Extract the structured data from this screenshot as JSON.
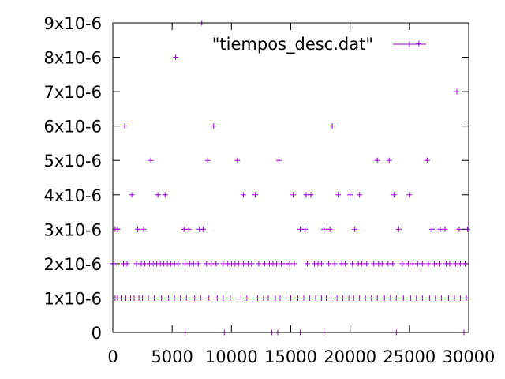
{
  "chart_data": {
    "type": "scatter",
    "title": "",
    "xlabel": "",
    "ylabel": "",
    "xlim": [
      0,
      30000
    ],
    "ylim": [
      0,
      9e-06
    ],
    "legend": "top-center",
    "grid": false,
    "marker": "plus",
    "colors": {
      "series": "#9400d3",
      "axis": "#000000",
      "background": "#ffffff"
    },
    "x_ticks": [
      {
        "value": 0,
        "label": "0"
      },
      {
        "value": 5000,
        "label": "5000"
      },
      {
        "value": 10000,
        "label": "10000"
      },
      {
        "value": 15000,
        "label": "15000"
      },
      {
        "value": 20000,
        "label": "20000"
      },
      {
        "value": 25000,
        "label": "25000"
      },
      {
        "value": 30000,
        "label": "30000"
      }
    ],
    "y_ticks": [
      {
        "value": 0,
        "label": "0"
      },
      {
        "value": 1e-06,
        "label": "1x10-6"
      },
      {
        "value": 2e-06,
        "label": "2x10-6"
      },
      {
        "value": 3e-06,
        "label": "3x10-6"
      },
      {
        "value": 4e-06,
        "label": "4x10-6"
      },
      {
        "value": 5e-06,
        "label": "5x10-6"
      },
      {
        "value": 6e-06,
        "label": "6x10-6"
      },
      {
        "value": 7e-06,
        "label": "7x10-6"
      },
      {
        "value": 8e-06,
        "label": "8x10-6"
      },
      {
        "value": 9e-06,
        "label": "9x10-6"
      }
    ],
    "series": [
      {
        "name": "\"tiempos_desc.dat\"",
        "points": [
          [
            7500,
            9e-06
          ],
          [
            5300,
            8e-06
          ],
          [
            25800,
            8.4e-06
          ],
          [
            29000,
            7e-06
          ],
          [
            1000,
            6e-06
          ],
          [
            8500,
            6e-06
          ],
          [
            18500,
            6e-06
          ],
          [
            3200,
            5e-06
          ],
          [
            8000,
            5e-06
          ],
          [
            10500,
            5e-06
          ],
          [
            14000,
            5e-06
          ],
          [
            22300,
            5e-06
          ],
          [
            23300,
            5e-06
          ],
          [
            26500,
            5e-06
          ],
          [
            1600,
            4e-06
          ],
          [
            3800,
            4e-06
          ],
          [
            4400,
            4e-06
          ],
          [
            11000,
            4e-06
          ],
          [
            12000,
            4e-06
          ],
          [
            15200,
            4e-06
          ],
          [
            16300,
            4e-06
          ],
          [
            16700,
            4e-06
          ],
          [
            19000,
            4e-06
          ],
          [
            20000,
            4e-06
          ],
          [
            20800,
            4e-06
          ],
          [
            23700,
            4e-06
          ],
          [
            25000,
            4e-06
          ],
          [
            200,
            3e-06
          ],
          [
            400,
            3e-06
          ],
          [
            2100,
            3e-06
          ],
          [
            2600,
            3e-06
          ],
          [
            6000,
            3e-06
          ],
          [
            6400,
            3e-06
          ],
          [
            7300,
            3e-06
          ],
          [
            7600,
            3e-06
          ],
          [
            15800,
            3e-06
          ],
          [
            16200,
            3e-06
          ],
          [
            17800,
            3e-06
          ],
          [
            18300,
            3e-06
          ],
          [
            20400,
            3e-06
          ],
          [
            24100,
            3e-06
          ],
          [
            26900,
            3e-06
          ],
          [
            27600,
            3e-06
          ],
          [
            28000,
            3e-06
          ],
          [
            29200,
            3e-06
          ],
          [
            29900,
            3e-06
          ],
          [
            0,
            2e-06
          ],
          [
            100,
            2e-06
          ],
          [
            900,
            2e-06
          ],
          [
            1200,
            2e-06
          ],
          [
            2000,
            2e-06
          ],
          [
            2400,
            2e-06
          ],
          [
            2700,
            2e-06
          ],
          [
            3100,
            2e-06
          ],
          [
            3400,
            2e-06
          ],
          [
            3700,
            2e-06
          ],
          [
            4000,
            2e-06
          ],
          [
            4300,
            2e-06
          ],
          [
            4600,
            2e-06
          ],
          [
            4900,
            2e-06
          ],
          [
            5200,
            2e-06
          ],
          [
            5500,
            2e-06
          ],
          [
            6100,
            2e-06
          ],
          [
            6500,
            2e-06
          ],
          [
            6800,
            2e-06
          ],
          [
            7200,
            2e-06
          ],
          [
            7900,
            2e-06
          ],
          [
            8300,
            2e-06
          ],
          [
            8700,
            2e-06
          ],
          [
            9300,
            2e-06
          ],
          [
            9700,
            2e-06
          ],
          [
            10000,
            2e-06
          ],
          [
            10300,
            2e-06
          ],
          [
            10600,
            2e-06
          ],
          [
            11000,
            2e-06
          ],
          [
            11400,
            2e-06
          ],
          [
            11700,
            2e-06
          ],
          [
            12300,
            2e-06
          ],
          [
            12800,
            2e-06
          ],
          [
            13200,
            2e-06
          ],
          [
            13500,
            2e-06
          ],
          [
            13800,
            2e-06
          ],
          [
            14200,
            2e-06
          ],
          [
            14600,
            2e-06
          ],
          [
            14900,
            2e-06
          ],
          [
            15300,
            2e-06
          ],
          [
            16400,
            2e-06
          ],
          [
            17000,
            2e-06
          ],
          [
            17300,
            2e-06
          ],
          [
            17600,
            2e-06
          ],
          [
            18200,
            2e-06
          ],
          [
            18700,
            2e-06
          ],
          [
            19300,
            2e-06
          ],
          [
            19600,
            2e-06
          ],
          [
            20200,
            2e-06
          ],
          [
            20700,
            2e-06
          ],
          [
            21000,
            2e-06
          ],
          [
            21400,
            2e-06
          ],
          [
            22000,
            2e-06
          ],
          [
            22400,
            2e-06
          ],
          [
            22700,
            2e-06
          ],
          [
            23200,
            2e-06
          ],
          [
            23600,
            2e-06
          ],
          [
            24400,
            2e-06
          ],
          [
            24900,
            2e-06
          ],
          [
            25300,
            2e-06
          ],
          [
            25700,
            2e-06
          ],
          [
            26100,
            2e-06
          ],
          [
            26600,
            2e-06
          ],
          [
            27100,
            2e-06
          ],
          [
            27500,
            2e-06
          ],
          [
            28100,
            2e-06
          ],
          [
            28400,
            2e-06
          ],
          [
            28900,
            2e-06
          ],
          [
            29300,
            2e-06
          ],
          [
            29700,
            2e-06
          ],
          [
            200,
            1e-06
          ],
          [
            400,
            1e-06
          ],
          [
            700,
            1e-06
          ],
          [
            1100,
            1e-06
          ],
          [
            1500,
            1e-06
          ],
          [
            1800,
            1e-06
          ],
          [
            2200,
            1e-06
          ],
          [
            2500,
            1e-06
          ],
          [
            3000,
            1e-06
          ],
          [
            3500,
            1e-06
          ],
          [
            4100,
            1e-06
          ],
          [
            4700,
            1e-06
          ],
          [
            5200,
            1e-06
          ],
          [
            5700,
            1e-06
          ],
          [
            6200,
            1e-06
          ],
          [
            6900,
            1e-06
          ],
          [
            7400,
            1e-06
          ],
          [
            8100,
            1e-06
          ],
          [
            8800,
            1e-06
          ],
          [
            9300,
            1e-06
          ],
          [
            9900,
            1e-06
          ],
          [
            10800,
            1e-06
          ],
          [
            11300,
            1e-06
          ],
          [
            12200,
            1e-06
          ],
          [
            12700,
            1e-06
          ],
          [
            13100,
            1e-06
          ],
          [
            13700,
            1e-06
          ],
          [
            14100,
            1e-06
          ],
          [
            14600,
            1e-06
          ],
          [
            15000,
            1e-06
          ],
          [
            15600,
            1e-06
          ],
          [
            16100,
            1e-06
          ],
          [
            16600,
            1e-06
          ],
          [
            17100,
            1e-06
          ],
          [
            17600,
            1e-06
          ],
          [
            18000,
            1e-06
          ],
          [
            18400,
            1e-06
          ],
          [
            18900,
            1e-06
          ],
          [
            19400,
            1e-06
          ],
          [
            19900,
            1e-06
          ],
          [
            20300,
            1e-06
          ],
          [
            20800,
            1e-06
          ],
          [
            21300,
            1e-06
          ],
          [
            21800,
            1e-06
          ],
          [
            22300,
            1e-06
          ],
          [
            22900,
            1e-06
          ],
          [
            23400,
            1e-06
          ],
          [
            23900,
            1e-06
          ],
          [
            24500,
            1e-06
          ],
          [
            25100,
            1e-06
          ],
          [
            25600,
            1e-06
          ],
          [
            26100,
            1e-06
          ],
          [
            26700,
            1e-06
          ],
          [
            27200,
            1e-06
          ],
          [
            27700,
            1e-06
          ],
          [
            28300,
            1e-06
          ],
          [
            28800,
            1e-06
          ],
          [
            29300,
            1e-06
          ],
          [
            29800,
            1e-06
          ],
          [
            6100,
            0
          ],
          [
            9400,
            0
          ],
          [
            13400,
            0
          ],
          [
            13900,
            0
          ],
          [
            15800,
            0
          ],
          [
            17800,
            0
          ],
          [
            23900,
            0
          ],
          [
            29600,
            0
          ]
        ]
      }
    ]
  }
}
